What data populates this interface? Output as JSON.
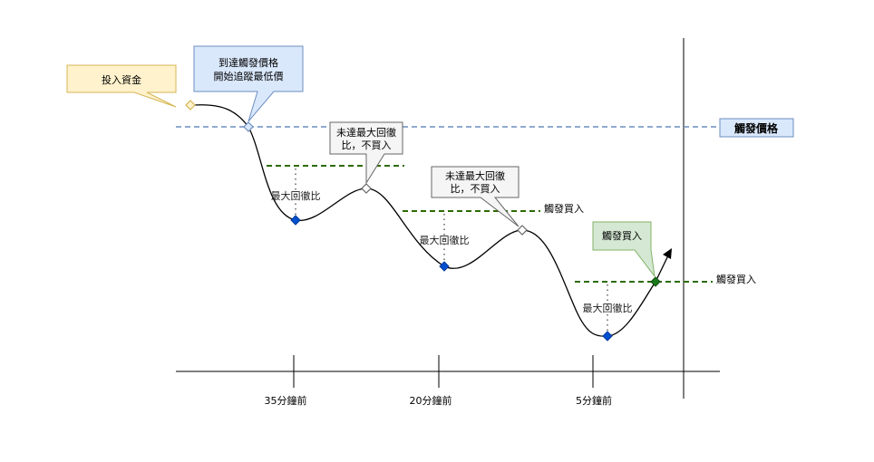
{
  "callouts": {
    "invest": "投入資金",
    "reach_line1": "到達觸發價格",
    "reach_line2": "開始追蹤最低價",
    "not_reach_a_line1": "未達最大回徹",
    "not_reach_a_line2": "比，不買入",
    "not_reach_b_line1": "未達最大回徹",
    "not_reach_b_line2": "比，不買入",
    "trigger_buy": "觸發買入"
  },
  "labels": {
    "trigger_price": "觸發價格",
    "trigger_buy_mid": "觸發買入",
    "trigger_buy_right": "觸發買入",
    "max_retrace_1": "最大回徹比",
    "max_retrace_2": "最大回徹比",
    "max_retrace_3": "最大回徹比"
  },
  "axis": {
    "ticks": [
      "35分鐘前",
      "20分鐘前",
      "5分鐘前"
    ]
  },
  "colors": {
    "trigger_line": "#6c8ebf",
    "threshold_line": "#2d6a00",
    "low_marker": "#0050d0",
    "buy_marker": "#1a7a1a",
    "callout_yellow_fill": "#fff2cc",
    "callout_yellow_stroke": "#d6b656",
    "callout_blue_fill": "#dae8fc",
    "callout_blue_stroke": "#6c8ebf",
    "callout_gray_fill": "#f5f5f5",
    "callout_gray_stroke": "#666666",
    "callout_green_fill": "#d5e8d4",
    "callout_green_stroke": "#82b366"
  }
}
